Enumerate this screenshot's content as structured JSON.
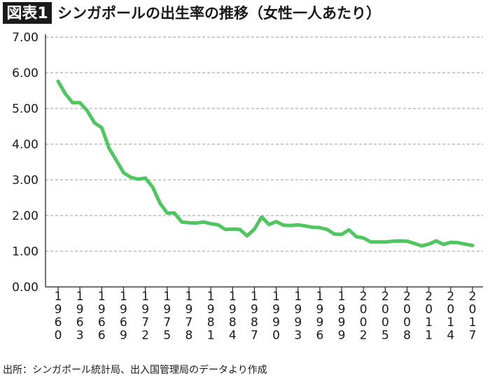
{
  "header": {
    "badge": "図表1",
    "title": "シンガポールの出生率の推移（女性一人あたり）"
  },
  "source_note": "出所：シンガポール統計局、出入国管理局のデータより作成",
  "colors": {
    "series": "#4fc660",
    "badge_bg": "#1a1a1a"
  },
  "chart_data": {
    "type": "line",
    "title": "シンガポールの出生率の推移（女性一人あたり）",
    "xlabel": "",
    "ylabel": "",
    "ylim": [
      0,
      7
    ],
    "yticks": [
      "0.00",
      "1.00",
      "2.00",
      "3.00",
      "4.00",
      "5.00",
      "6.00",
      "7.00"
    ],
    "xlim": [
      1960,
      2017
    ],
    "xticks": [
      "1960",
      "1963",
      "1966",
      "1969",
      "1972",
      "1975",
      "1978",
      "1981",
      "1984",
      "1987",
      "1990",
      "1993",
      "1996",
      "1999",
      "2002",
      "2005",
      "2008",
      "2011",
      "2014",
      "2017"
    ],
    "grid": true,
    "series": [
      {
        "x": [
          1960,
          1961,
          1962,
          1963,
          1964,
          1965,
          1966,
          1967,
          1968,
          1969,
          1970,
          1971,
          1972,
          1973,
          1974,
          1975,
          1976,
          1977,
          1978,
          1979,
          1980,
          1981,
          1982,
          1983,
          1984,
          1985,
          1986,
          1987,
          1988,
          1989,
          1990,
          1991,
          1992,
          1993,
          1994,
          1995,
          1996,
          1997,
          1998,
          1999,
          2000,
          2001,
          2002,
          2003,
          2004,
          2005,
          2006,
          2007,
          2008,
          2009,
          2010,
          2011,
          2012,
          2013,
          2014,
          2015,
          2016,
          2017
        ],
        "values": [
          5.76,
          5.41,
          5.16,
          5.16,
          4.94,
          4.6,
          4.46,
          3.89,
          3.55,
          3.2,
          3.07,
          3.02,
          3.05,
          2.8,
          2.35,
          2.07,
          2.07,
          1.82,
          1.8,
          1.79,
          1.82,
          1.77,
          1.74,
          1.61,
          1.62,
          1.61,
          1.43,
          1.62,
          1.96,
          1.75,
          1.83,
          1.73,
          1.72,
          1.74,
          1.71,
          1.67,
          1.66,
          1.61,
          1.48,
          1.47,
          1.6,
          1.41,
          1.37,
          1.26,
          1.26,
          1.26,
          1.28,
          1.29,
          1.28,
          1.22,
          1.15,
          1.2,
          1.29,
          1.19,
          1.25,
          1.24,
          1.2,
          1.16
        ]
      }
    ]
  }
}
